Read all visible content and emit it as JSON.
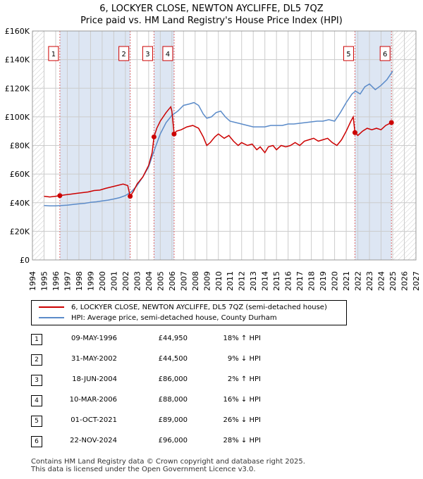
{
  "chart_data": {
    "type": "line",
    "title": "6, LOCKYER CLOSE, NEWTON AYCLIFFE, DL5 7QZ",
    "subtitle": "Price paid vs. HM Land Registry's House Price Index (HPI)",
    "xlim": [
      1994,
      2027
    ],
    "ylim": [
      0,
      160000
    ],
    "x_ticks": [
      "1994",
      "1995",
      "1996",
      "1997",
      "1998",
      "1999",
      "2000",
      "2001",
      "2002",
      "2003",
      "2004",
      "2005",
      "2006",
      "2007",
      "2008",
      "2009",
      "2010",
      "2011",
      "2012",
      "2013",
      "2014",
      "2015",
      "2016",
      "2017",
      "2018",
      "2019",
      "2020",
      "2021",
      "2022",
      "2023",
      "2024",
      "2025",
      "2026",
      "2027"
    ],
    "y_ticks": [
      {
        "value": 0,
        "label": "£0"
      },
      {
        "value": 20000,
        "label": "£20K"
      },
      {
        "value": 40000,
        "label": "£40K"
      },
      {
        "value": 60000,
        "label": "£60K"
      },
      {
        "value": 80000,
        "label": "£80K"
      },
      {
        "value": 100000,
        "label": "£100K"
      },
      {
        "value": 120000,
        "label": "£120K"
      },
      {
        "value": 140000,
        "label": "£140K"
      },
      {
        "value": 160000,
        "label": "£160K"
      }
    ],
    "data_start": 1995.0,
    "data_end": 2025.0,
    "series": [
      {
        "name": "6, LOCKYER CLOSE, NEWTON AYCLIFFE, DL5 7QZ (semi-detached house)",
        "color": "#cc0000",
        "points": [
          [
            1995.0,
            44500
          ],
          [
            1995.5,
            44000
          ],
          [
            1996.0,
            44500
          ],
          [
            1996.36,
            44950
          ],
          [
            1996.8,
            45500
          ],
          [
            1997.3,
            46000
          ],
          [
            1997.8,
            46500
          ],
          [
            1998.3,
            47000
          ],
          [
            1998.8,
            47500
          ],
          [
            1999.3,
            48500
          ],
          [
            1999.8,
            48800
          ],
          [
            2000.3,
            50000
          ],
          [
            2000.8,
            51000
          ],
          [
            2001.3,
            52000
          ],
          [
            2001.8,
            53000
          ],
          [
            2002.2,
            52000
          ],
          [
            2002.41,
            44500
          ],
          [
            2002.7,
            48000
          ],
          [
            2003.0,
            53000
          ],
          [
            2003.5,
            58000
          ],
          [
            2004.0,
            66000
          ],
          [
            2004.3,
            75000
          ],
          [
            2004.46,
            86000
          ],
          [
            2004.7,
            92000
          ],
          [
            2005.0,
            97000
          ],
          [
            2005.5,
            103000
          ],
          [
            2005.9,
            107000
          ],
          [
            2006.0,
            104000
          ],
          [
            2006.19,
            88000
          ],
          [
            2006.4,
            90000
          ],
          [
            2006.8,
            91000
          ],
          [
            2007.3,
            93000
          ],
          [
            2007.8,
            94000
          ],
          [
            2008.3,
            92000
          ],
          [
            2008.7,
            86000
          ],
          [
            2009.0,
            80000
          ],
          [
            2009.3,
            82000
          ],
          [
            2009.7,
            86000
          ],
          [
            2010.0,
            88000
          ],
          [
            2010.5,
            85000
          ],
          [
            2010.9,
            87000
          ],
          [
            2011.3,
            83000
          ],
          [
            2011.7,
            80000
          ],
          [
            2012.0,
            82000
          ],
          [
            2012.5,
            80000
          ],
          [
            2012.9,
            81000
          ],
          [
            2013.3,
            77000
          ],
          [
            2013.6,
            79000
          ],
          [
            2014.0,
            75000
          ],
          [
            2014.3,
            79000
          ],
          [
            2014.7,
            80000
          ],
          [
            2015.0,
            77000
          ],
          [
            2015.4,
            80000
          ],
          [
            2015.8,
            79000
          ],
          [
            2016.2,
            80000
          ],
          [
            2016.6,
            82000
          ],
          [
            2017.0,
            80000
          ],
          [
            2017.4,
            83000
          ],
          [
            2017.8,
            84000
          ],
          [
            2018.2,
            85000
          ],
          [
            2018.6,
            83000
          ],
          [
            2019.0,
            84000
          ],
          [
            2019.4,
            85000
          ],
          [
            2019.8,
            82000
          ],
          [
            2020.2,
            80000
          ],
          [
            2020.6,
            84000
          ],
          [
            2021.0,
            90000
          ],
          [
            2021.4,
            97000
          ],
          [
            2021.6,
            100000
          ],
          [
            2021.75,
            89000
          ],
          [
            2022.0,
            87000
          ],
          [
            2022.4,
            90000
          ],
          [
            2022.8,
            92000
          ],
          [
            2023.2,
            91000
          ],
          [
            2023.6,
            92000
          ],
          [
            2024.0,
            91000
          ],
          [
            2024.4,
            94000
          ],
          [
            2024.89,
            96000
          ],
          [
            2025.0,
            97000
          ]
        ]
      },
      {
        "name": "HPI: Average price, semi-detached house, County Durham",
        "color": "#5b8bc9",
        "points": [
          [
            1995.0,
            38000
          ],
          [
            1995.5,
            37800
          ],
          [
            1996.0,
            37800
          ],
          [
            1996.5,
            38000
          ],
          [
            1997.0,
            38300
          ],
          [
            1997.5,
            38800
          ],
          [
            1998.0,
            39200
          ],
          [
            1998.5,
            39600
          ],
          [
            1999.0,
            40200
          ],
          [
            1999.5,
            40600
          ],
          [
            2000.0,
            41200
          ],
          [
            2000.5,
            41800
          ],
          [
            2001.0,
            42600
          ],
          [
            2001.5,
            43500
          ],
          [
            2002.0,
            45000
          ],
          [
            2002.5,
            47500
          ],
          [
            2003.0,
            52000
          ],
          [
            2003.5,
            58000
          ],
          [
            2004.0,
            65000
          ],
          [
            2004.5,
            77000
          ],
          [
            2005.0,
            88000
          ],
          [
            2005.5,
            96000
          ],
          [
            2006.0,
            101000
          ],
          [
            2006.5,
            104000
          ],
          [
            2007.0,
            108000
          ],
          [
            2007.5,
            109000
          ],
          [
            2007.9,
            110000
          ],
          [
            2008.3,
            108000
          ],
          [
            2008.7,
            102000
          ],
          [
            2009.0,
            99000
          ],
          [
            2009.4,
            100000
          ],
          [
            2009.8,
            103000
          ],
          [
            2010.2,
            104000
          ],
          [
            2010.6,
            100000
          ],
          [
            2011.0,
            97000
          ],
          [
            2011.5,
            96000
          ],
          [
            2012.0,
            95000
          ],
          [
            2012.5,
            94000
          ],
          [
            2013.0,
            93000
          ],
          [
            2013.5,
            93000
          ],
          [
            2014.0,
            93000
          ],
          [
            2014.5,
            94000
          ],
          [
            2015.0,
            94000
          ],
          [
            2015.5,
            94000
          ],
          [
            2016.0,
            95000
          ],
          [
            2016.5,
            95000
          ],
          [
            2017.0,
            95500
          ],
          [
            2017.5,
            96000
          ],
          [
            2018.0,
            96500
          ],
          [
            2018.5,
            97000
          ],
          [
            2019.0,
            97000
          ],
          [
            2019.5,
            98000
          ],
          [
            2020.0,
            97000
          ],
          [
            2020.5,
            103000
          ],
          [
            2021.0,
            110000
          ],
          [
            2021.5,
            116000
          ],
          [
            2021.8,
            118000
          ],
          [
            2022.2,
            116000
          ],
          [
            2022.6,
            121000
          ],
          [
            2023.0,
            123000
          ],
          [
            2023.5,
            119000
          ],
          [
            2024.0,
            122000
          ],
          [
            2024.5,
            126000
          ],
          [
            2025.0,
            132000
          ]
        ]
      }
    ],
    "sales": [
      {
        "id": "1",
        "x": 1996.36,
        "y": 44950
      },
      {
        "id": "2",
        "x": 2002.41,
        "y": 44500
      },
      {
        "id": "3",
        "x": 2004.46,
        "y": 86000
      },
      {
        "id": "4",
        "x": 2006.19,
        "y": 88000
      },
      {
        "id": "5",
        "x": 2021.75,
        "y": 89000
      },
      {
        "id": "6",
        "x": 2024.89,
        "y": 96000
      }
    ],
    "shaded_ranges": [
      [
        1996.36,
        2002.41
      ],
      [
        2004.46,
        2006.19
      ],
      [
        2021.75,
        2024.89
      ]
    ]
  },
  "legend": {
    "property": "6, LOCKYER CLOSE, NEWTON AYCLIFFE, DL5 7QZ (semi-detached house)",
    "hpi": "HPI: Average price, semi-detached house, County Durham"
  },
  "transactions": [
    {
      "num": "1",
      "date": "09-MAY-1996",
      "price": "£44,950",
      "hpi": "18% ↑ HPI"
    },
    {
      "num": "2",
      "date": "31-MAY-2002",
      "price": "£44,500",
      "hpi": "9% ↓ HPI"
    },
    {
      "num": "3",
      "date": "18-JUN-2004",
      "price": "£86,000",
      "hpi": "2% ↑ HPI"
    },
    {
      "num": "4",
      "date": "10-MAR-2006",
      "price": "£88,000",
      "hpi": "16% ↓ HPI"
    },
    {
      "num": "5",
      "date": "01-OCT-2021",
      "price": "£89,000",
      "hpi": "26% ↓ HPI"
    },
    {
      "num": "6",
      "date": "22-NOV-2024",
      "price": "£96,000",
      "hpi": "28% ↓ HPI"
    }
  ],
  "footer": {
    "line1": "Contains HM Land Registry data © Crown copyright and database right 2025.",
    "line2": "This data is licensed under the Open Government Licence v3.0."
  }
}
